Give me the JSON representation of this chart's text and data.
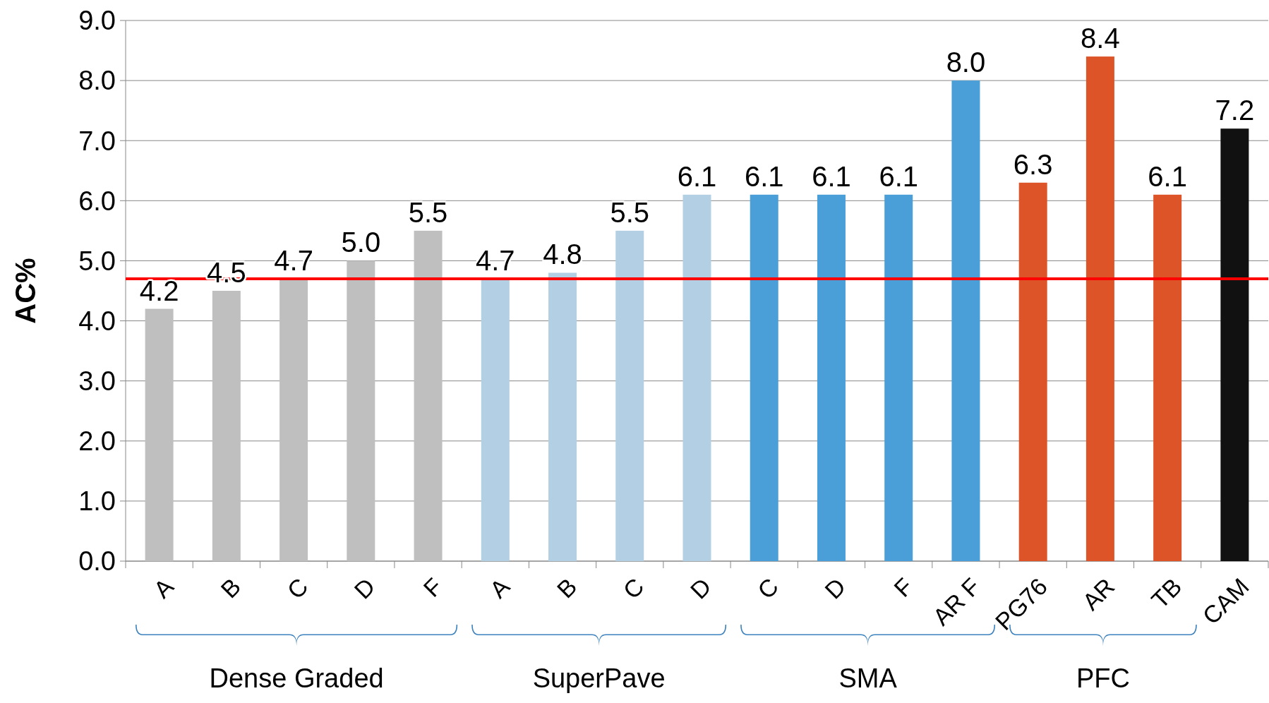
{
  "chart_data": {
    "type": "bar",
    "ylabel": "AC%",
    "categories": [
      "A",
      "B",
      "C",
      "D",
      "F",
      "A",
      "B",
      "C",
      "D",
      "C",
      "D",
      "F",
      "AR F",
      "PG76",
      "AR",
      "TB",
      "CAM"
    ],
    "values": [
      4.2,
      4.5,
      4.7,
      5.0,
      5.5,
      4.7,
      4.8,
      5.5,
      6.1,
      6.1,
      6.1,
      6.1,
      8.0,
      6.3,
      8.4,
      6.1,
      7.2
    ],
    "value_labels": [
      "4.2",
      "4.5",
      "4.7",
      "5.0",
      "5.5",
      "4.7",
      "4.8",
      "5.5",
      "6.1",
      "6.1",
      "6.1",
      "6.1",
      "8.0",
      "6.3",
      "8.4",
      "6.1",
      "7.2"
    ],
    "colors": [
      "#bfbfbf",
      "#bfbfbf",
      "#bfbfbf",
      "#bfbfbf",
      "#bfbfbf",
      "#b3cfe3",
      "#b3cfe3",
      "#b3cfe3",
      "#b3cfe3",
      "#4a9fd8",
      "#4a9fd8",
      "#4a9fd8",
      "#4a9fd8",
      "#dd5428",
      "#dd5428",
      "#dd5428",
      "#111111"
    ],
    "ylim": [
      0,
      9
    ],
    "yticks": [
      {
        "value": 0,
        "label": "0.0"
      },
      {
        "value": 1,
        "label": "1.0"
      },
      {
        "value": 2,
        "label": "2.0"
      },
      {
        "value": 3,
        "label": "3.0"
      },
      {
        "value": 4,
        "label": "4.0"
      },
      {
        "value": 5,
        "label": "5.0"
      },
      {
        "value": 6,
        "label": "6.0"
      },
      {
        "value": 7,
        "label": "7.0"
      },
      {
        "value": 8,
        "label": "8.0"
      },
      {
        "value": 9,
        "label": "9.0"
      }
    ],
    "grid": "y",
    "ref_lines": [
      {
        "axis": "y",
        "value": 4.7,
        "color": "#ff0000"
      }
    ],
    "annotations": [
      "Dense Graded",
      "SuperPave",
      "SMA",
      "PFC"
    ]
  }
}
